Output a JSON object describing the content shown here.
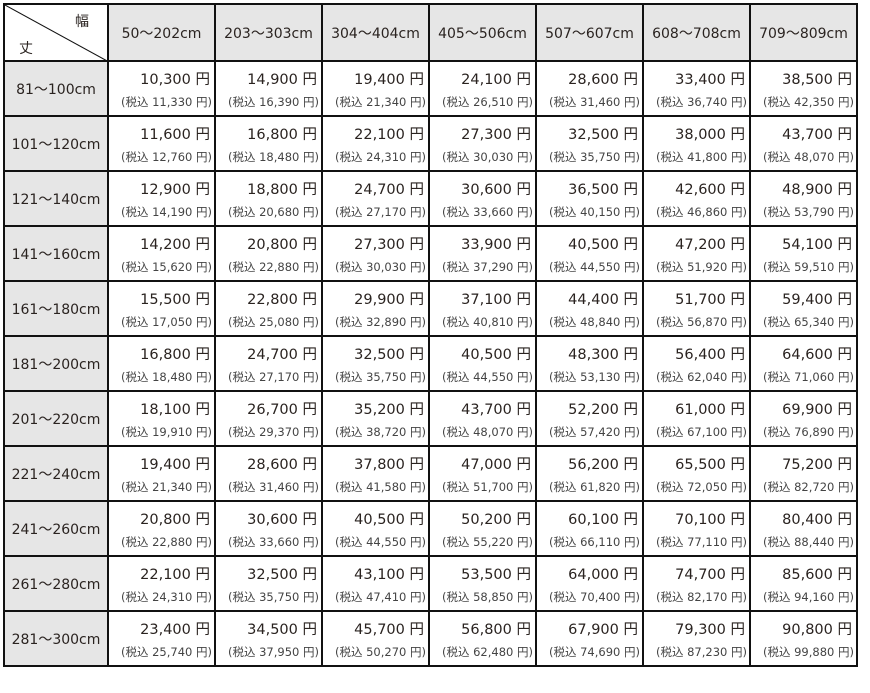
{
  "corner": {
    "width_label": "幅",
    "height_label": "丈"
  },
  "columns": [
    "50〜202cm",
    "203〜303cm",
    "304〜404cm",
    "405〜506cm",
    "507〜607cm",
    "608〜708cm",
    "709〜809cm"
  ],
  "rows": [
    {
      "label": "81〜100cm",
      "prices": [
        "10,300 円",
        "14,900 円",
        "19,400 円",
        "24,100 円",
        "28,600 円",
        "33,400 円",
        "38,500 円"
      ],
      "taxed": [
        "(税込 11,330 円)",
        "(税込 16,390 円)",
        "(税込 21,340 円)",
        "(税込 26,510 円)",
        "(税込 31,460 円)",
        "(税込 36,740 円)",
        "(税込 42,350 円)"
      ]
    },
    {
      "label": "101〜120cm",
      "prices": [
        "11,600 円",
        "16,800 円",
        "22,100 円",
        "27,300 円",
        "32,500 円",
        "38,000 円",
        "43,700 円"
      ],
      "taxed": [
        "(税込 12,760 円)",
        "(税込 18,480 円)",
        "(税込 24,310 円)",
        "(税込 30,030 円)",
        "(税込 35,750 円)",
        "(税込 41,800 円)",
        "(税込 48,070 円)"
      ]
    },
    {
      "label": "121〜140cm",
      "prices": [
        "12,900 円",
        "18,800 円",
        "24,700 円",
        "30,600 円",
        "36,500 円",
        "42,600 円",
        "48,900 円"
      ],
      "taxed": [
        "(税込 14,190 円)",
        "(税込 20,680 円)",
        "(税込 27,170 円)",
        "(税込 33,660 円)",
        "(税込 40,150 円)",
        "(税込 46,860 円)",
        "(税込 53,790 円)"
      ]
    },
    {
      "label": "141〜160cm",
      "prices": [
        "14,200 円",
        "20,800 円",
        "27,300 円",
        "33,900 円",
        "40,500 円",
        "47,200 円",
        "54,100 円"
      ],
      "taxed": [
        "(税込 15,620 円)",
        "(税込 22,880 円)",
        "(税込 30,030 円)",
        "(税込 37,290 円)",
        "(税込 44,550 円)",
        "(税込 51,920 円)",
        "(税込 59,510 円)"
      ]
    },
    {
      "label": "161〜180cm",
      "prices": [
        "15,500 円",
        "22,800 円",
        "29,900 円",
        "37,100 円",
        "44,400 円",
        "51,700 円",
        "59,400 円"
      ],
      "taxed": [
        "(税込 17,050 円)",
        "(税込 25,080 円)",
        "(税込 32,890 円)",
        "(税込 40,810 円)",
        "(税込 48,840 円)",
        "(税込 56,870 円)",
        "(税込 65,340 円)"
      ]
    },
    {
      "label": "181〜200cm",
      "prices": [
        "16,800 円",
        "24,700 円",
        "32,500 円",
        "40,500 円",
        "48,300 円",
        "56,400 円",
        "64,600 円"
      ],
      "taxed": [
        "(税込 18,480 円)",
        "(税込 27,170 円)",
        "(税込 35,750 円)",
        "(税込 44,550 円)",
        "(税込 53,130 円)",
        "(税込 62,040 円)",
        "(税込 71,060 円)"
      ]
    },
    {
      "label": "201〜220cm",
      "prices": [
        "18,100 円",
        "26,700 円",
        "35,200 円",
        "43,700 円",
        "52,200 円",
        "61,000 円",
        "69,900 円"
      ],
      "taxed": [
        "(税込 19,910 円)",
        "(税込 29,370 円)",
        "(税込 38,720 円)",
        "(税込 48,070 円)",
        "(税込 57,420 円)",
        "(税込 67,100 円)",
        "(税込 76,890 円)"
      ]
    },
    {
      "label": "221〜240cm",
      "prices": [
        "19,400 円",
        "28,600 円",
        "37,800 円",
        "47,000 円",
        "56,200 円",
        "65,500 円",
        "75,200 円"
      ],
      "taxed": [
        "(税込 21,340 円)",
        "(税込 31,460 円)",
        "(税込 41,580 円)",
        "(税込 51,700 円)",
        "(税込 61,820 円)",
        "(税込 72,050 円)",
        "(税込 82,720 円)"
      ]
    },
    {
      "label": "241〜260cm",
      "prices": [
        "20,800 円",
        "30,600 円",
        "40,500 円",
        "50,200 円",
        "60,100 円",
        "70,100 円",
        "80,400 円"
      ],
      "taxed": [
        "(税込 22,880 円)",
        "(税込 33,660 円)",
        "(税込 44,550 円)",
        "(税込 55,220 円)",
        "(税込 66,110 円)",
        "(税込 77,110 円)",
        "(税込 88,440 円)"
      ]
    },
    {
      "label": "261〜280cm",
      "prices": [
        "22,100 円",
        "32,500 円",
        "43,100 円",
        "53,500 円",
        "64,000 円",
        "74,700 円",
        "85,600 円"
      ],
      "taxed": [
        "(税込 24,310 円)",
        "(税込 35,750 円)",
        "(税込 47,410 円)",
        "(税込 58,850 円)",
        "(税込 70,400 円)",
        "(税込 82,170 円)",
        "(税込 94,160 円)"
      ]
    },
    {
      "label": "281〜300cm",
      "prices": [
        "23,400 円",
        "34,500 円",
        "45,700 円",
        "56,800 円",
        "67,900 円",
        "79,300 円",
        "90,800 円"
      ],
      "taxed": [
        "(税込 25,740 円)",
        "(税込 37,950 円)",
        "(税込 50,270 円)",
        "(税込 62,480 円)",
        "(税込 74,690 円)",
        "(税込 87,230 円)",
        "(税込 99,880 円)"
      ]
    }
  ]
}
